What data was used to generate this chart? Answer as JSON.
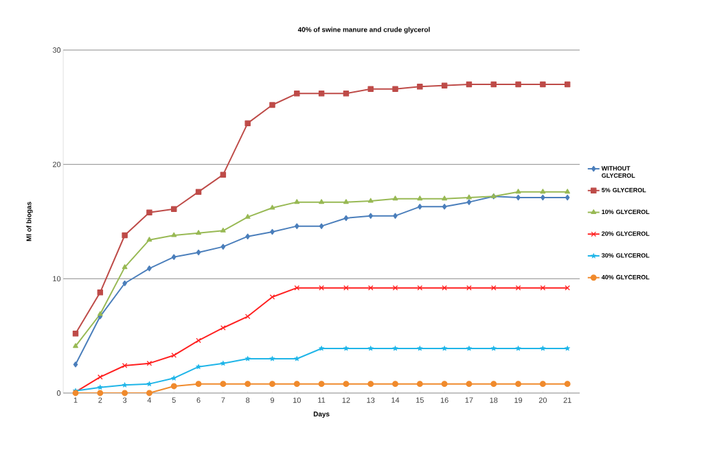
{
  "chart_data": {
    "type": "line",
    "title": "40% of swine manure and crude glycerol",
    "xlabel": "Days",
    "ylabel": "Ml of biogas",
    "categories": [
      "1",
      "2",
      "3",
      "4",
      "5",
      "6",
      "7",
      "8",
      "9",
      "10",
      "11",
      "12",
      "13",
      "14",
      "15",
      "16",
      "17",
      "18",
      "19",
      "20",
      "21"
    ],
    "ylim": [
      0,
      30
    ],
    "yticks": [
      0,
      10,
      20,
      30
    ],
    "grid": "y",
    "legend": "right",
    "series": [
      {
        "name": "WITHOUT GLYCEROL",
        "color": "#4a7ebb",
        "marker": "diamond",
        "values": [
          2.5,
          6.7,
          9.6,
          10.9,
          11.9,
          12.3,
          12.8,
          13.7,
          14.1,
          14.6,
          14.6,
          15.3,
          15.5,
          15.5,
          16.3,
          16.3,
          16.7,
          17.2,
          17.1,
          17.1,
          17.1
        ]
      },
      {
        "name": "5% GLYCEROL",
        "color": "#be4b48",
        "marker": "square",
        "values": [
          5.2,
          8.8,
          13.8,
          15.8,
          16.1,
          17.6,
          19.1,
          23.6,
          25.2,
          26.2,
          26.2,
          26.2,
          26.6,
          26.6,
          26.8,
          26.9,
          27.0,
          27.0,
          27.0,
          27.0,
          27.0
        ]
      },
      {
        "name": "10% GLYCEROL",
        "color": "#98b954",
        "marker": "triangle",
        "values": [
          4.1,
          6.9,
          11.0,
          13.4,
          13.8,
          14.0,
          14.2,
          15.4,
          16.2,
          16.7,
          16.7,
          16.7,
          16.8,
          17.0,
          17.0,
          17.0,
          17.1,
          17.2,
          17.6,
          17.6,
          17.6
        ]
      },
      {
        "name": "20% GLYCEROL",
        "color": "#ff2020",
        "marker": "cross",
        "values": [
          0.1,
          1.4,
          2.4,
          2.6,
          3.3,
          4.6,
          5.7,
          6.7,
          8.4,
          9.2,
          9.2,
          9.2,
          9.2,
          9.2,
          9.2,
          9.2,
          9.2,
          9.2,
          9.2,
          9.2,
          9.2
        ]
      },
      {
        "name": "30% GLYCEROL",
        "color": "#1fb5e8",
        "marker": "star",
        "values": [
          0.2,
          0.5,
          0.7,
          0.8,
          1.3,
          2.3,
          2.6,
          3.0,
          3.0,
          3.0,
          3.9,
          3.9,
          3.9,
          3.9,
          3.9,
          3.9,
          3.9,
          3.9,
          3.9,
          3.9,
          3.9
        ]
      },
      {
        "name": "40% GLYCEROL",
        "color": "#f08a2c",
        "marker": "circle",
        "values": [
          0,
          0,
          0,
          0,
          0.6,
          0.8,
          0.8,
          0.8,
          0.8,
          0.8,
          0.8,
          0.8,
          0.8,
          0.8,
          0.8,
          0.8,
          0.8,
          0.8,
          0.8,
          0.8,
          0.8
        ]
      }
    ]
  }
}
